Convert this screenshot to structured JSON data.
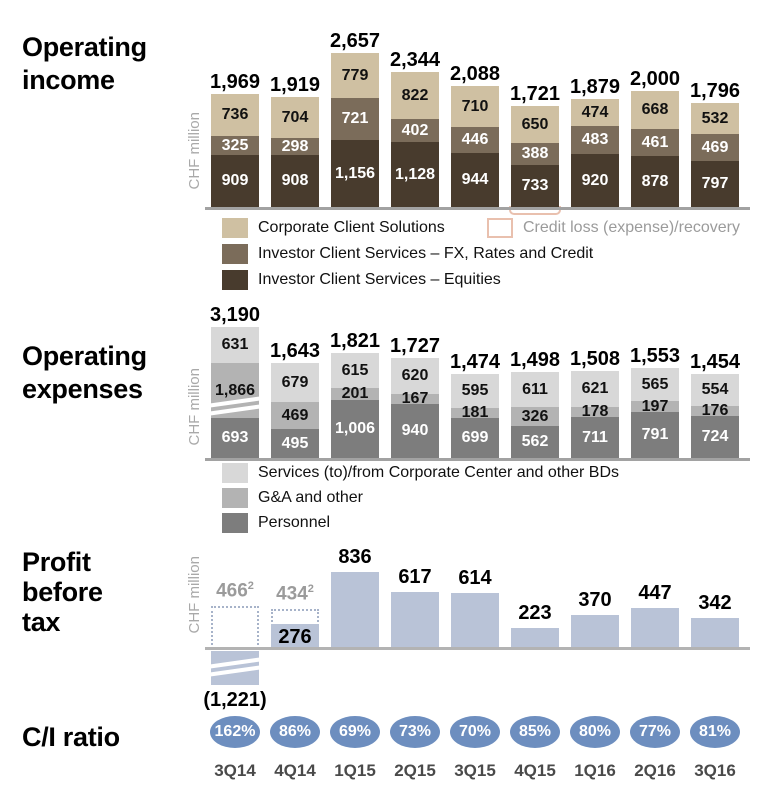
{
  "sections": {
    "income_title": "Operating\nincome",
    "expenses_title": "Operating\nexpenses",
    "pbt_title": "Profit\nbefore\ntax",
    "ci_title": "C/I ratio",
    "axis_unit": "CHF million"
  },
  "quarters": [
    "3Q14",
    "4Q14",
    "1Q15",
    "2Q15",
    "3Q15",
    "4Q15",
    "1Q16",
    "2Q16",
    "3Q16"
  ],
  "colors": {
    "corporate_client_solutions": "#cfc0a2",
    "ics_fx_rates_credit": "#7b6c5a",
    "ics_equities": "#483b2d",
    "credit_loss_outline": "#e9c0ae",
    "services_corp_center": "#d8d8d8",
    "ga_and_other": "#b3b3b3",
    "personnel": "#7d7d7d",
    "pbt_bar_blue": "#b9c3d7",
    "ci_oval_blue": "#6d8ebf",
    "axis_gray": "#a2a2a2",
    "muted_gray_text": "#9b9b9b"
  },
  "chart_data": [
    {
      "id": "income",
      "type": "bar",
      "stacked": true,
      "title": "Operating income",
      "ylabel": "CHF million",
      "categories": [
        "3Q14",
        "4Q14",
        "1Q15",
        "2Q15",
        "3Q15",
        "4Q15",
        "1Q16",
        "2Q16",
        "3Q16"
      ],
      "series": [
        {
          "name": "Investor Client Services – Equities",
          "color": "#483b2d",
          "label_color": "#ffffff",
          "values": [
            909,
            908,
            1156,
            1128,
            944,
            733,
            920,
            878,
            797
          ]
        },
        {
          "name": "Investor Client Services – FX, Rates and Credit",
          "color": "#7b6c5a",
          "label_color": "#ffffff",
          "values": [
            325,
            298,
            721,
            402,
            446,
            388,
            483,
            461,
            469
          ]
        },
        {
          "name": "Corporate Client Solutions",
          "color": "#cfc0a2",
          "label_color": "#111111",
          "values": [
            736,
            704,
            779,
            822,
            710,
            650,
            474,
            668,
            532
          ]
        }
      ],
      "totals": [
        1969,
        1919,
        2657,
        2344,
        2088,
        1721,
        1879,
        2000,
        1796
      ],
      "credit_loss_marker": {
        "bar_index": 5,
        "color": "#e9c0ae"
      },
      "legend": [
        {
          "label": "Corporate Client Solutions",
          "color": "#cfc0a2"
        },
        {
          "label": "Credit loss (expense)/recovery",
          "outline": "#e9c0ae",
          "text_color": "#9b9b9b"
        },
        {
          "label": "Investor Client Services – FX, Rates and Credit",
          "color": "#7b6c5a"
        },
        {
          "label": "Investor Client Services – Equities",
          "color": "#483b2d"
        }
      ]
    },
    {
      "id": "expenses",
      "type": "bar",
      "stacked": true,
      "title": "Operating expenses",
      "ylabel": "CHF million",
      "categories": [
        "3Q14",
        "4Q14",
        "1Q15",
        "2Q15",
        "3Q15",
        "4Q15",
        "1Q16",
        "2Q16",
        "3Q16"
      ],
      "series": [
        {
          "name": "Personnel",
          "color": "#7d7d7d",
          "label_color": "#ffffff",
          "values": [
            693,
            495,
            1006,
            940,
            699,
            562,
            711,
            791,
            724
          ]
        },
        {
          "name": "G&A and other",
          "color": "#b3b3b3",
          "label_color": "#111111",
          "values": [
            1866,
            469,
            201,
            167,
            181,
            326,
            178,
            197,
            176
          ]
        },
        {
          "name": "Services (to)/from Corporate Center and other BDs",
          "color": "#d8d8d8",
          "label_color": "#111111",
          "values": [
            631,
            679,
            615,
            620,
            595,
            611,
            621,
            565,
            554
          ]
        }
      ],
      "totals": [
        3190,
        1643,
        1821,
        1727,
        1474,
        1498,
        1508,
        1553,
        1454
      ],
      "axis_break": {
        "bar_index": 0,
        "series_name": "G&A and other"
      },
      "legend": [
        {
          "label": "Services (to)/from Corporate Center and other BDs",
          "color": "#d8d8d8"
        },
        {
          "label": "G&A and other",
          "color": "#b3b3b3"
        },
        {
          "label": "Personnel",
          "color": "#7d7d7d"
        }
      ]
    },
    {
      "id": "pbt",
      "type": "bar",
      "title": "Profit before tax",
      "ylabel": "CHF million",
      "color": "#b9c3d7",
      "categories": [
        "3Q14",
        "4Q14",
        "1Q15",
        "2Q15",
        "3Q15",
        "4Q15",
        "1Q16",
        "2Q16",
        "3Q16"
      ],
      "bars": [
        {
          "adjusted_value": 466,
          "footnote": "2",
          "reported_value": -1221,
          "reported_label": "(1,221)",
          "axis_break": true
        },
        {
          "adjusted_value": 434,
          "footnote": "2",
          "reported_value": 276
        },
        {
          "value": 836
        },
        {
          "value": 617
        },
        {
          "value": 614
        },
        {
          "value": 223
        },
        {
          "value": 370
        },
        {
          "value": 447
        },
        {
          "value": 342
        }
      ]
    },
    {
      "id": "ci_ratio",
      "type": "table",
      "title": "C/I ratio",
      "categories": [
        "3Q14",
        "4Q14",
        "1Q15",
        "2Q15",
        "3Q15",
        "4Q15",
        "1Q16",
        "2Q16",
        "3Q16"
      ],
      "values_pct": [
        162,
        86,
        69,
        73,
        70,
        85,
        80,
        77,
        81
      ],
      "oval_color": "#6d8ebf"
    }
  ]
}
